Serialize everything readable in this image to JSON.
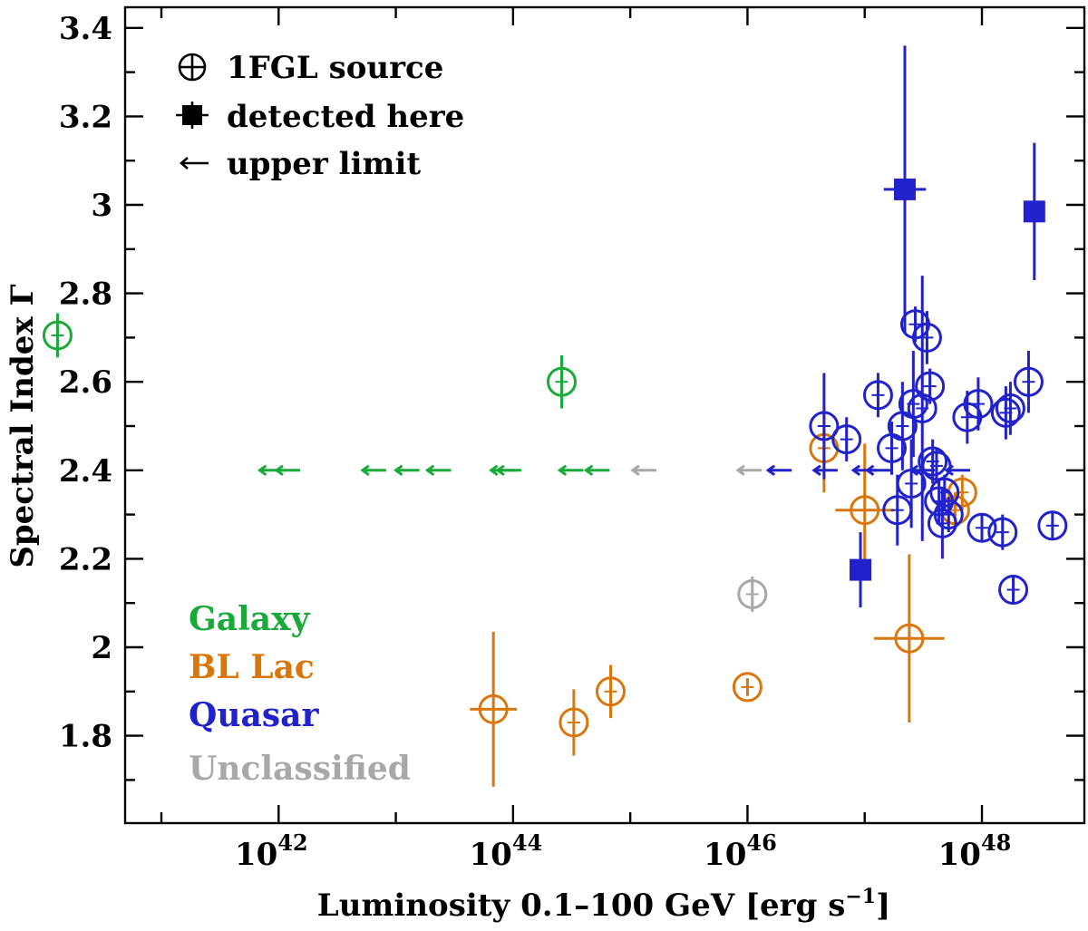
{
  "chart_data": {
    "type": "scatter",
    "xlabel": "Luminosity",
    "xlabel_range": "0.1–100",
    "xlabel_unit": "GeV",
    "xlabel_units_bracket": "[erg s",
    "xlabel_units_exp": "−1",
    "xlabel_units_close": "]",
    "ylabel": "Spectral Index Γ",
    "x_scale": "log",
    "xlim": [
      1.3e+40,
      1.2e+49
    ],
    "ylim": [
      1.6,
      3.44
    ],
    "x_ticks": [
      {
        "value": 1e+42,
        "base": "10",
        "exp": "42"
      },
      {
        "value": 1e+44,
        "base": "10",
        "exp": "44"
      },
      {
        "value": 1e+46,
        "base": "10",
        "exp": "46"
      },
      {
        "value": 1e+48,
        "base": "10",
        "exp": "48"
      }
    ],
    "x_minor_ticks": [
      1e+41,
      1e+43,
      1e+45,
      1e+47
    ],
    "y_ticks": [
      1.8,
      2.0,
      2.2,
      2.4,
      2.6,
      2.8,
      3.0,
      3.2,
      3.4
    ],
    "y_tick_labels": [
      "1.8",
      "2",
      "2.2",
      "2.4",
      "2.6",
      "2.8",
      "3",
      "3.2",
      "3.4"
    ],
    "y_minor_ticks": [
      1.7,
      1.9,
      2.1,
      2.3,
      2.5,
      2.7,
      2.9,
      3.1,
      3.3
    ],
    "grid": false,
    "legend": {
      "position": "top-left",
      "entries": [
        {
          "marker": "circle-plus",
          "label": "1FGL source"
        },
        {
          "marker": "filled-square",
          "label": "detected here"
        },
        {
          "marker": "arrow-left",
          "label": "upper limit"
        }
      ]
    },
    "class_labels": {
      "position": "bottom-left",
      "entries": [
        {
          "label": "Galaxy",
          "color": "#1aaa3a"
        },
        {
          "label": "BL Lac",
          "color": "#d9770d"
        },
        {
          "label": "Quasar",
          "color": "#2222cc"
        },
        {
          "label": "Unclassified",
          "color": "#a8a8a8"
        }
      ]
    },
    "colors": {
      "Galaxy": "#1aaa3a",
      "BL Lac": "#d9770d",
      "Quasar": "#2222cc",
      "Unclassified": "#a8a8a8"
    },
    "series": [
      {
        "name": "Galaxy",
        "detections_1fgl": [
          {
            "x": 1.3e+40,
            "y": 2.705,
            "yerr": 0.05
          },
          {
            "x": 2.6e+44,
            "y": 2.6,
            "yerr": 0.06
          }
        ],
        "detections_new": [],
        "upper_limits": [
          {
            "x": 6.9e+41,
            "y": 2.4
          },
          {
            "x": 9.6e+41,
            "y": 2.4
          },
          {
            "x": 5.2e+42,
            "y": 2.4
          },
          {
            "x": 1e+43,
            "y": 2.4
          },
          {
            "x": 1.86e+43,
            "y": 2.4
          },
          {
            "x": 6.5e+43,
            "y": 2.4
          },
          {
            "x": 7.4e+43,
            "y": 2.4
          },
          {
            "x": 2.5e+44,
            "y": 2.4
          },
          {
            "x": 4.2e+44,
            "y": 2.4
          }
        ]
      },
      {
        "name": "BL Lac",
        "detections_1fgl": [
          {
            "x": 6.8e+43,
            "y": 1.86,
            "yerr": 0.175,
            "xerr_dex": 0.2
          },
          {
            "x": 3.3e+44,
            "y": 1.83,
            "yerr": 0.075
          },
          {
            "x": 6.8e+44,
            "y": 1.9,
            "yerr": 0.06
          },
          {
            "x": 1e+46,
            "y": 1.91,
            "yerr": 0.02
          },
          {
            "x": 4.5e+46,
            "y": 2.45,
            "yerr": 0.1
          },
          {
            "x": 1e+47,
            "y": 2.31,
            "yerr": 0.15,
            "xerr_dex": 0.25
          },
          {
            "x": 2.4e+47,
            "y": 2.02,
            "yerr": 0.19,
            "xerr_dex": 0.3
          },
          {
            "x": 6.8e+47,
            "y": 2.35,
            "yerr": 0.04
          },
          {
            "x": 5.9e+47,
            "y": 2.31,
            "yerr": 0.04
          }
        ],
        "detections_new": [],
        "upper_limits": []
      },
      {
        "name": "Quasar",
        "detections_1fgl": [
          {
            "x": 4.5e+46,
            "y": 2.5,
            "yerr": 0.12
          },
          {
            "x": 7e+46,
            "y": 2.47,
            "yerr": 0.05
          },
          {
            "x": 1.3e+47,
            "y": 2.57,
            "yerr": 0.05
          },
          {
            "x": 1.7e+47,
            "y": 2.45,
            "yerr": 0.06
          },
          {
            "x": 1.9e+47,
            "y": 2.31,
            "yerr": 0.08
          },
          {
            "x": 2.1e+47,
            "y": 2.5,
            "yerr": 0.1
          },
          {
            "x": 2.5e+47,
            "y": 2.37,
            "yerr": 0.1
          },
          {
            "x": 2.6e+47,
            "y": 2.55,
            "yerr": 0.12
          },
          {
            "x": 2.7e+47,
            "y": 2.73,
            "yerr": 0.04
          },
          {
            "x": 3.1e+47,
            "y": 2.54,
            "yerr": 0.3
          },
          {
            "x": 3.4e+47,
            "y": 2.7,
            "yerr": 0.06
          },
          {
            "x": 3.6e+47,
            "y": 2.59,
            "yerr": 0.04
          },
          {
            "x": 3.8e+47,
            "y": 2.42,
            "yerr": 0.05
          },
          {
            "x": 4.1e+47,
            "y": 2.41,
            "yerr": 0.04
          },
          {
            "x": 4.3e+47,
            "y": 2.33,
            "yerr": 0.05
          },
          {
            "x": 4.6e+47,
            "y": 2.28,
            "yerr": 0.08
          },
          {
            "x": 4.8e+47,
            "y": 2.35,
            "yerr": 0.04
          },
          {
            "x": 5.2e+47,
            "y": 2.3,
            "yerr": 0.04
          },
          {
            "x": 7.5e+47,
            "y": 2.52,
            "yerr": 0.06
          },
          {
            "x": 9.3e+47,
            "y": 2.55,
            "yerr": 0.06
          },
          {
            "x": 1e+48,
            "y": 2.27,
            "yerr": 0.03
          },
          {
            "x": 1.5e+48,
            "y": 2.26,
            "yerr": 0.04
          },
          {
            "x": 1.6e+48,
            "y": 2.53,
            "yerr": 0.06
          },
          {
            "x": 1.75e+48,
            "y": 2.54,
            "yerr": 0.06
          },
          {
            "x": 1.85e+48,
            "y": 2.13,
            "yerr": 0.03
          },
          {
            "x": 2.5e+48,
            "y": 2.6,
            "yerr": 0.07
          },
          {
            "x": 4e+48,
            "y": 2.275,
            "yerr": 0.03
          }
        ],
        "detections_new": [
          {
            "x": 2.2e+47,
            "y": 3.035,
            "yerr": 0.325,
            "xerr_dex": 0.18
          },
          {
            "x": 9.2e+46,
            "y": 2.175,
            "yerr": 0.085
          },
          {
            "x": 2.8e+48,
            "y": 2.985,
            "yerr": 0.155
          }
        ],
        "upper_limits": [
          {
            "x": 1.5e+46,
            "y": 2.4
          },
          {
            "x": 3.7e+46,
            "y": 2.4
          },
          {
            "x": 8e+46,
            "y": 2.4
          },
          {
            "x": 1.05e+47,
            "y": 2.4
          },
          {
            "x": 2.5e+47,
            "y": 2.4
          },
          {
            "x": 5e+47,
            "y": 2.4
          }
        ]
      },
      {
        "name": "Unclassified",
        "detections_1fgl": [
          {
            "x": 1.1e+46,
            "y": 2.12,
            "yerr": 0.04
          }
        ],
        "detections_new": [],
        "upper_limits": [
          {
            "x": 1.05e+45,
            "y": 2.4
          },
          {
            "x": 8.3e+45,
            "y": 2.4
          }
        ]
      }
    ]
  }
}
